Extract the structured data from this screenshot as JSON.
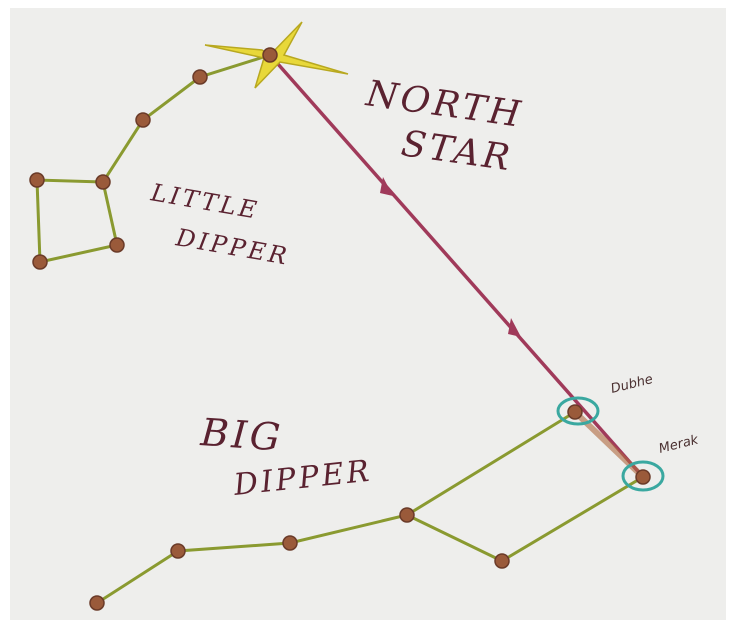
{
  "north_star": {
    "lines": [
      "NORTH",
      "STAR"
    ]
  },
  "little_dipper": {
    "lines": [
      "LITTLE",
      "DIPPER"
    ]
  },
  "big_dipper": {
    "lines": [
      "BIG",
      "DIPPER"
    ]
  },
  "stars": {
    "dubhe": "Dubhe",
    "merak": "Merak"
  }
}
